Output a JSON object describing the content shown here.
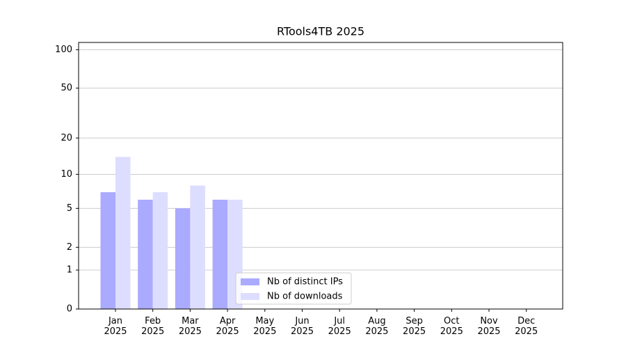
{
  "chart_data": {
    "type": "bar",
    "title": "RTools4TB 2025",
    "categories": [
      "Jan\n2025",
      "Feb\n2025",
      "Mar\n2025",
      "Apr\n2025",
      "May\n2025",
      "Jun\n2025",
      "Jul\n2025",
      "Aug\n2025",
      "Sep\n2025",
      "Oct\n2025",
      "Nov\n2025",
      "Dec\n2025"
    ],
    "series": [
      {
        "name": "Nb of distinct IPs",
        "color": "#aaaaff",
        "values": [
          7,
          6,
          5,
          6,
          null,
          null,
          null,
          null,
          null,
          null,
          null,
          null
        ]
      },
      {
        "name": "Nb of downloads",
        "color": "#ddddff",
        "values": [
          14,
          7,
          8,
          6,
          null,
          null,
          null,
          null,
          null,
          null,
          null,
          null
        ]
      }
    ],
    "y_scale": "log1p",
    "ylim": [
      0,
      114
    ],
    "yticks": [
      0,
      1,
      2,
      5,
      10,
      20,
      50,
      100
    ],
    "grid": true,
    "legend": "lower center"
  }
}
